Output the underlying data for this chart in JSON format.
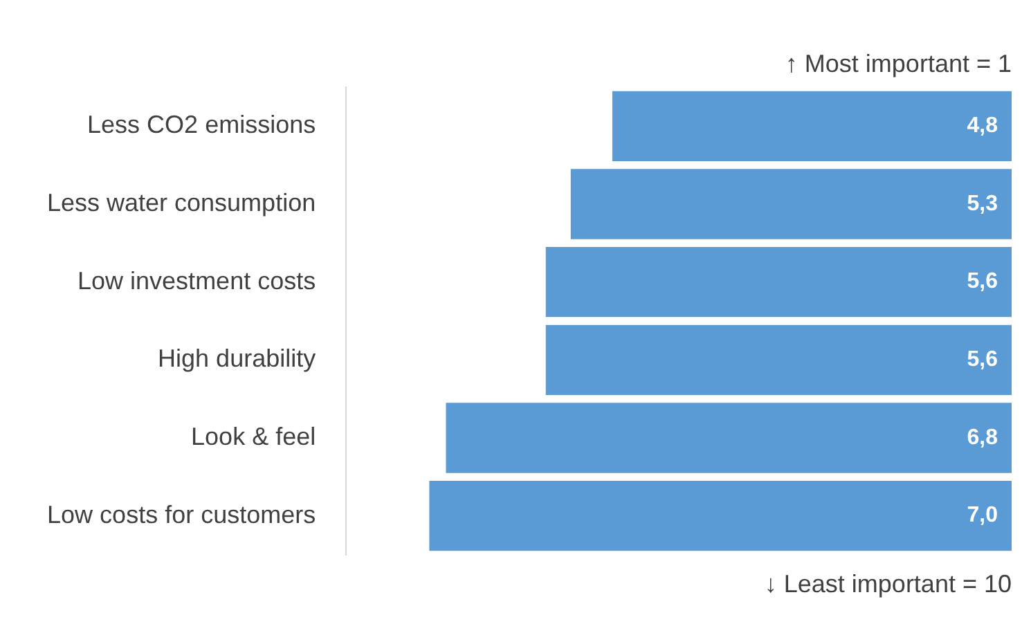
{
  "chart_data": {
    "type": "bar",
    "orientation": "horizontal",
    "categories": [
      "Less CO2 emissions",
      "Less water consumption",
      "Low investment costs",
      "High durability",
      "Look & feel",
      "Low costs for customers"
    ],
    "values": [
      4.8,
      5.3,
      5.6,
      5.6,
      6.8,
      7.0
    ],
    "value_labels": [
      "4,8",
      "5,3",
      "5,6",
      "5,6",
      "6,8",
      "7,0"
    ],
    "color": "#5b9bd5",
    "xlim": [
      8,
      0
    ],
    "tick_labels": "y",
    "grid": false,
    "legend": false,
    "annotations": [
      "↑ Most important = 1",
      "↓ Least important = 10"
    ]
  }
}
